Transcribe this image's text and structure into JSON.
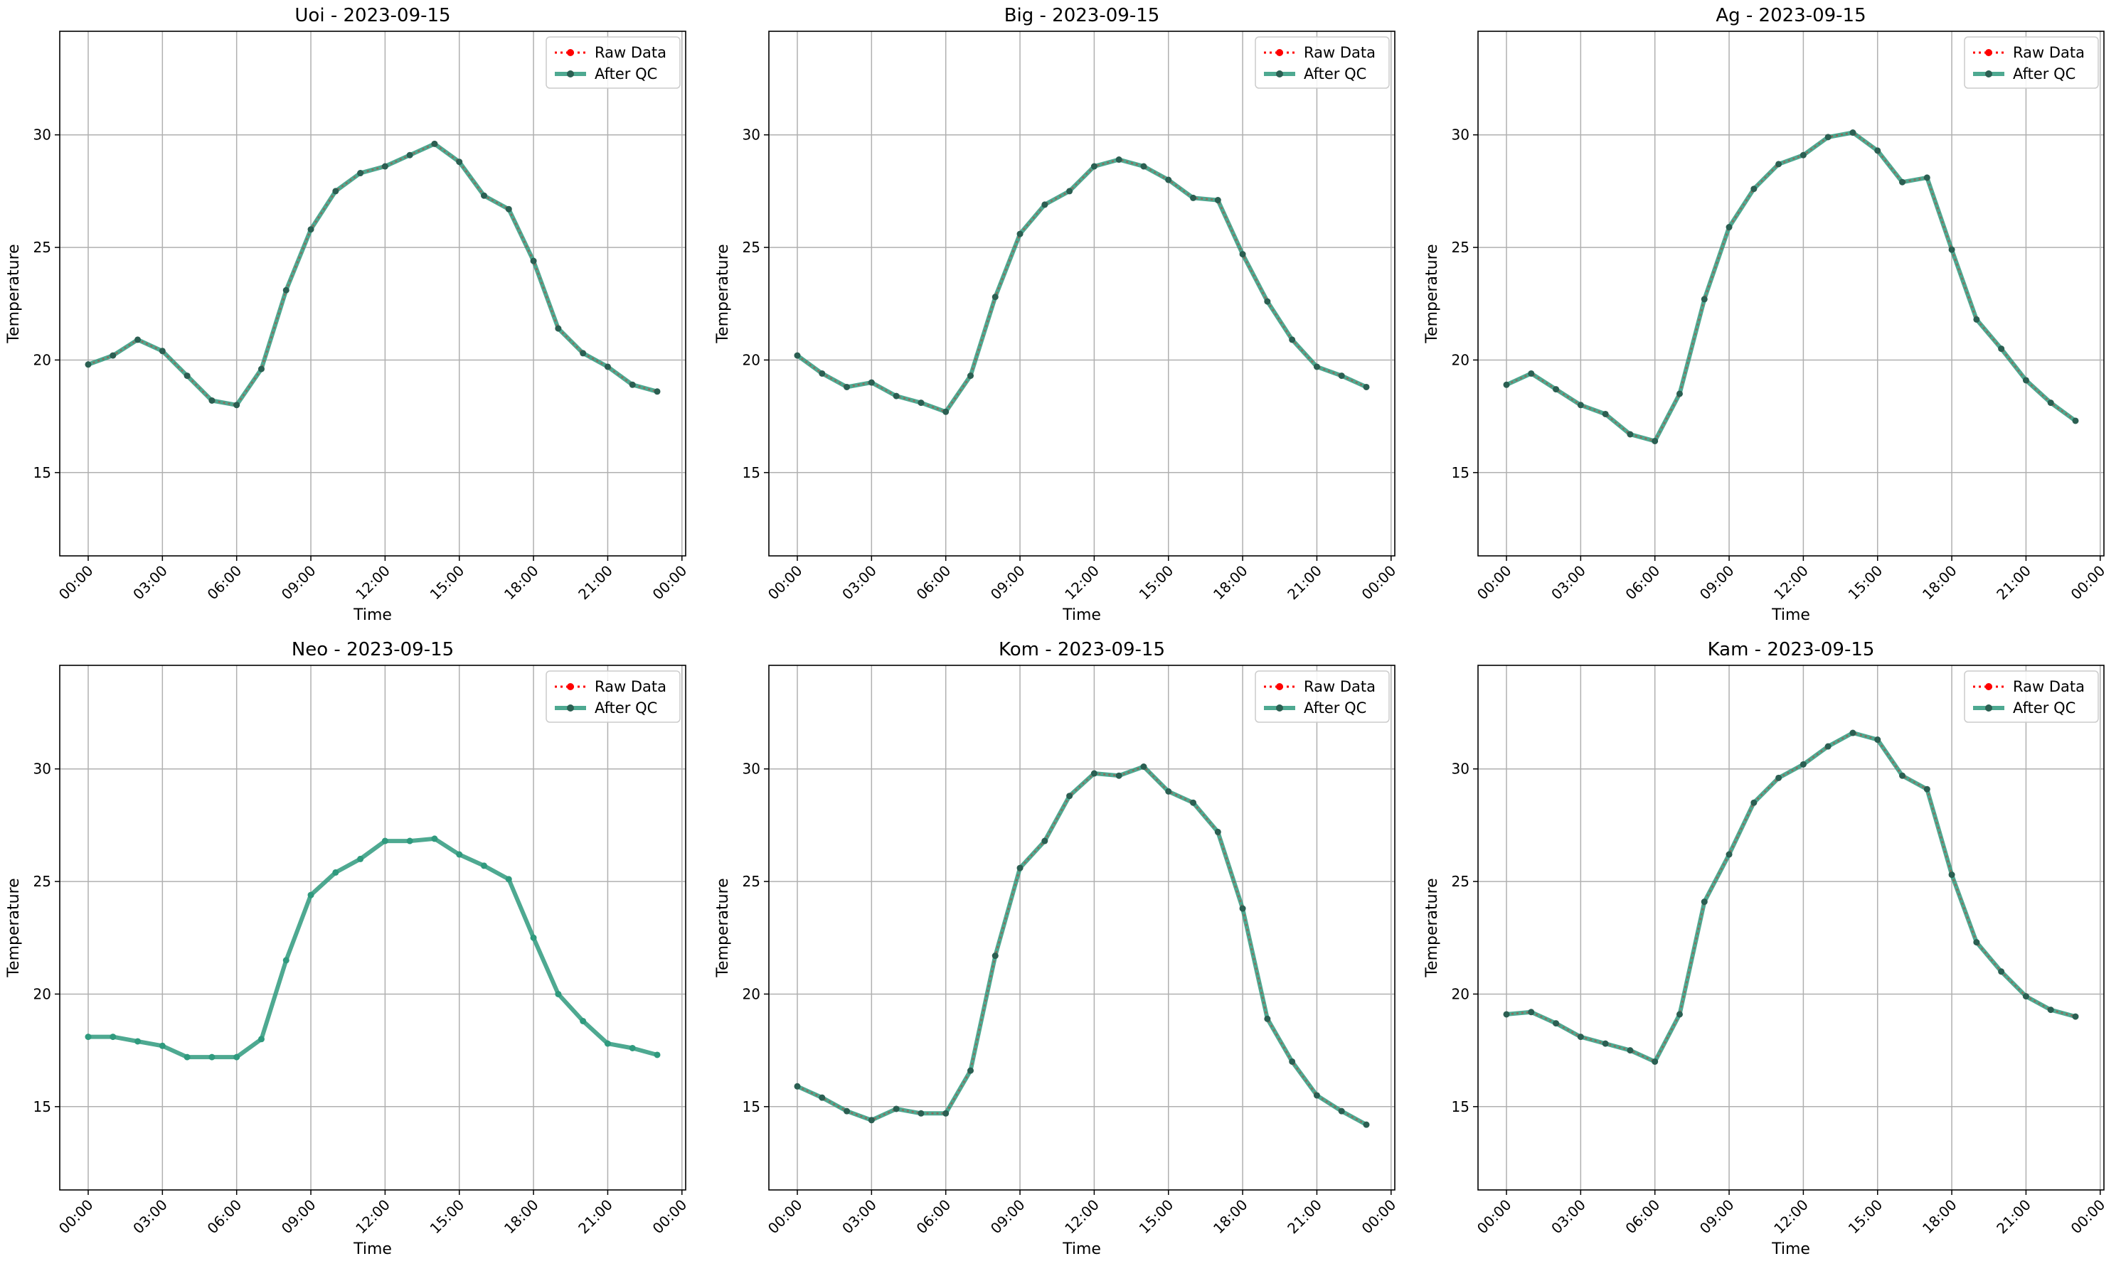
{
  "chart_data": [
    {
      "type": "line",
      "title": "Uoi - 2023-09-15",
      "xlabel": "Time",
      "ylabel": "Temperature",
      "x_hours": [
        0,
        1,
        2,
        3,
        4,
        5,
        6,
        7,
        8,
        9,
        10,
        11,
        12,
        13,
        14,
        15,
        16,
        17,
        18,
        19,
        20,
        21,
        22,
        23
      ],
      "series": [
        {
          "name": "Raw Data",
          "color": "#ff0000",
          "values": [
            19.8,
            20.2,
            20.9,
            20.4,
            19.3,
            18.2,
            18.0,
            19.6,
            23.1,
            25.8,
            27.5,
            28.3,
            28.6,
            29.1,
            29.6,
            28.8,
            27.3,
            26.7,
            24.4,
            21.4,
            20.3,
            19.7,
            18.9,
            18.6
          ]
        },
        {
          "name": "After QC",
          "color": "#2f9a7e",
          "values": [
            19.8,
            20.2,
            20.9,
            20.4,
            19.3,
            18.2,
            18.0,
            19.6,
            23.1,
            25.8,
            27.5,
            28.3,
            28.6,
            29.1,
            29.6,
            28.8,
            27.3,
            26.7,
            24.4,
            21.4,
            20.3,
            19.7,
            18.9,
            18.6
          ]
        }
      ]
    },
    {
      "type": "line",
      "title": "Big - 2023-09-15",
      "xlabel": "Time",
      "ylabel": "Temperature",
      "x_hours": [
        0,
        1,
        2,
        3,
        4,
        5,
        6,
        7,
        8,
        9,
        10,
        11,
        12,
        13,
        14,
        15,
        16,
        17,
        18,
        19,
        20,
        21,
        22,
        23
      ],
      "series": [
        {
          "name": "Raw Data",
          "color": "#ff0000",
          "values": [
            20.2,
            19.4,
            18.8,
            19.0,
            18.4,
            18.1,
            17.7,
            19.3,
            22.8,
            25.6,
            26.9,
            27.5,
            28.6,
            28.9,
            28.6,
            28.0,
            27.2,
            27.1,
            24.7,
            22.6,
            20.9,
            19.7,
            19.3,
            18.8
          ]
        },
        {
          "name": "After QC",
          "color": "#2f9a7e",
          "values": [
            20.2,
            19.4,
            18.8,
            19.0,
            18.4,
            18.1,
            17.7,
            19.3,
            22.8,
            25.6,
            26.9,
            27.5,
            28.6,
            28.9,
            28.6,
            28.0,
            27.2,
            27.1,
            24.7,
            22.6,
            20.9,
            19.7,
            19.3,
            18.8
          ]
        }
      ]
    },
    {
      "type": "line",
      "title": "Ag - 2023-09-15",
      "xlabel": "Time",
      "ylabel": "Temperature",
      "x_hours": [
        0,
        1,
        2,
        3,
        4,
        5,
        6,
        7,
        8,
        9,
        10,
        11,
        12,
        13,
        14,
        15,
        16,
        17,
        18,
        19,
        20,
        21,
        22,
        23
      ],
      "series": [
        {
          "name": "Raw Data",
          "color": "#ff0000",
          "values": [
            18.9,
            19.4,
            18.7,
            18.0,
            17.6,
            16.7,
            16.4,
            18.5,
            22.7,
            25.9,
            27.6,
            28.7,
            29.1,
            29.9,
            30.1,
            29.3,
            27.9,
            28.1,
            24.9,
            21.8,
            20.5,
            19.1,
            18.1,
            17.3
          ]
        },
        {
          "name": "After QC",
          "color": "#2f9a7e",
          "values": [
            18.9,
            19.4,
            18.7,
            18.0,
            17.6,
            16.7,
            16.4,
            18.5,
            22.7,
            25.9,
            27.6,
            28.7,
            29.1,
            29.9,
            30.1,
            29.3,
            27.9,
            28.1,
            24.9,
            21.8,
            20.5,
            19.1,
            18.1,
            17.3
          ]
        }
      ]
    },
    {
      "type": "line",
      "title": "Neo - 2023-09-15",
      "xlabel": "Time",
      "ylabel": "Temperature",
      "x_hours": [
        0,
        1,
        2,
        3,
        4,
        5,
        6,
        7,
        8,
        9,
        10,
        11,
        12,
        13,
        14,
        15,
        16,
        17,
        18,
        19,
        20,
        21,
        22,
        23
      ],
      "series": [
        {
          "name": "Raw Data",
          "color": "#ff0000",
          "values": [
            18.1,
            18.1,
            17.9,
            17.7,
            17.2,
            17.2,
            17.2,
            18.0,
            21.5,
            24.4,
            25.4,
            26.0,
            26.8,
            26.8,
            26.9,
            26.2,
            25.7,
            25.1,
            22.5,
            20.0,
            18.8,
            17.8,
            17.6,
            17.3
          ]
        },
        {
          "name": "After QC",
          "color": "#2f9a7e",
          "values": [
            18.1,
            18.1,
            17.9,
            17.7,
            17.2,
            17.2,
            17.2,
            18.0,
            21.5,
            24.4,
            25.4,
            26.0,
            26.8,
            26.8,
            26.9,
            26.2,
            25.7,
            25.1,
            22.5,
            20.0,
            18.8,
            17.8,
            17.6,
            17.3
          ]
        }
      ]
    },
    {
      "type": "line",
      "title": "Kom - 2023-09-15",
      "xlabel": "Time",
      "ylabel": "Temperature",
      "x_hours": [
        0,
        1,
        2,
        3,
        4,
        5,
        6,
        7,
        8,
        9,
        10,
        11,
        12,
        13,
        14,
        15,
        16,
        17,
        18,
        19,
        20,
        21,
        22,
        23
      ],
      "series": [
        {
          "name": "Raw Data",
          "color": "#ff0000",
          "values": [
            15.9,
            15.4,
            14.8,
            14.4,
            14.9,
            14.7,
            14.7,
            16.6,
            21.7,
            25.6,
            26.8,
            28.8,
            29.8,
            29.7,
            30.1,
            29.0,
            28.5,
            27.2,
            23.8,
            18.9,
            17.0,
            15.5,
            14.8,
            14.2
          ]
        },
        {
          "name": "After QC",
          "color": "#2f9a7e",
          "values": [
            15.9,
            15.4,
            14.8,
            14.4,
            14.9,
            14.7,
            14.7,
            16.6,
            21.7,
            25.6,
            26.8,
            28.8,
            29.8,
            29.7,
            30.1,
            29.0,
            28.5,
            27.2,
            23.8,
            18.9,
            17.0,
            15.5,
            14.8,
            14.2
          ]
        }
      ]
    },
    {
      "type": "line",
      "title": "Kam - 2023-09-15",
      "xlabel": "Time",
      "ylabel": "Temperature",
      "x_hours": [
        0,
        1,
        2,
        3,
        4,
        5,
        6,
        7,
        8,
        9,
        10,
        11,
        12,
        13,
        14,
        15,
        16,
        17,
        18,
        19,
        20,
        21,
        22,
        23
      ],
      "series": [
        {
          "name": "Raw Data",
          "color": "#ff0000",
          "values": [
            19.1,
            19.2,
            18.7,
            18.1,
            17.8,
            17.5,
            17.0,
            19.1,
            24.1,
            26.2,
            28.5,
            29.6,
            30.2,
            31.0,
            31.6,
            31.3,
            29.7,
            29.1,
            25.3,
            22.3,
            21.0,
            19.9,
            19.3,
            19.0
          ]
        },
        {
          "name": "After QC",
          "color": "#2f9a7e",
          "values": [
            19.1,
            19.2,
            18.7,
            18.1,
            17.8,
            17.5,
            17.0,
            19.1,
            24.1,
            26.2,
            28.5,
            29.6,
            30.2,
            31.0,
            31.6,
            31.3,
            29.7,
            29.1,
            25.3,
            22.3,
            21.0,
            19.9,
            19.3,
            19.0
          ]
        }
      ]
    }
  ],
  "axes": {
    "x_tick_labels": [
      "00:00",
      "03:00",
      "06:00",
      "09:00",
      "12:00",
      "15:00",
      "18:00",
      "21:00",
      "00:00"
    ],
    "x_tick_hours": [
      0,
      3,
      6,
      9,
      12,
      15,
      18,
      21,
      24
    ],
    "x_range_hours": [
      -1.15,
      24.15
    ],
    "y_ticks": [
      15,
      20,
      25,
      30
    ],
    "y_range": [
      11.3,
      34.6
    ],
    "grid": true,
    "legend_position": "upper right"
  }
}
